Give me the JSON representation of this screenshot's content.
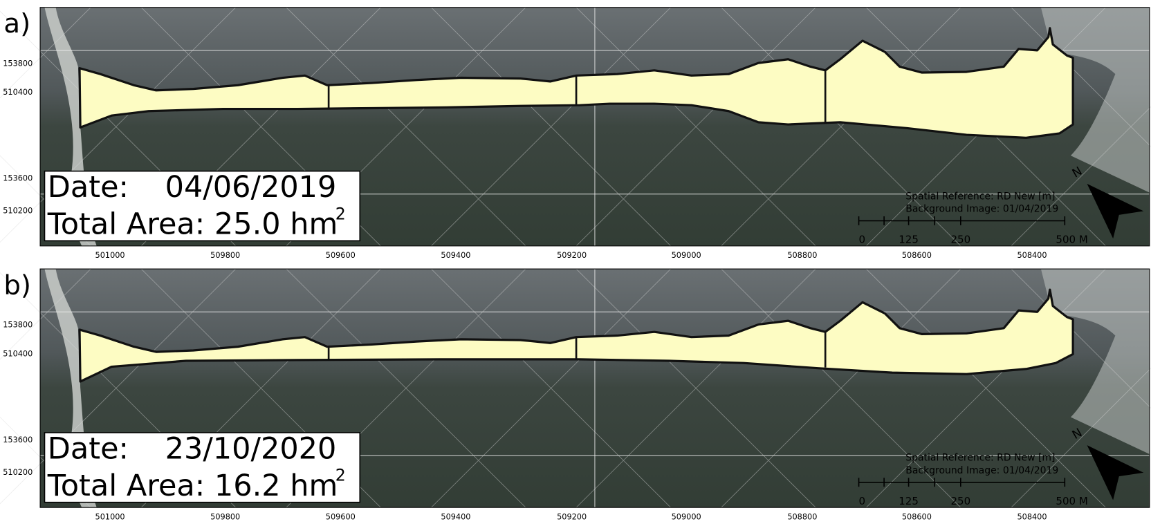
{
  "panels": [
    {
      "label": "a)",
      "date_label": "Date:",
      "date": "04/06/2019",
      "area": "Total Area: 25.0 hm",
      "area_sup": "2",
      "y_labels": [
        "153800",
        "510400",
        "153600",
        "510200"
      ],
      "x_labels": [
        "501000",
        "509800",
        "509600",
        "509400",
        "509200",
        "509000",
        "508800",
        "508600",
        "508400"
      ],
      "spatial_reference": "Spatial Reference: RD New [m]",
      "background_image": "Background Image: 01/04/2019",
      "scale_labels": [
        "0",
        "125",
        "250",
        "500 M"
      ],
      "north": "N"
    },
    {
      "label": "b)",
      "date_label": "Date:",
      "date": "23/10/2020",
      "area": "Total Area: 16.2 hm",
      "area_sup": "2",
      "y_labels": [
        "153800",
        "510400",
        "153600",
        "510200"
      ],
      "x_labels": [
        "501000",
        "509800",
        "509600",
        "509400",
        "509200",
        "509000",
        "508800",
        "508600",
        "508400"
      ],
      "spatial_reference": "Spatial Reference: RD New [m]",
      "background_image": "Background Image: 01/04/2019",
      "scale_labels": [
        "0",
        "125",
        "250",
        "500 M"
      ],
      "north": "N"
    }
  ]
}
